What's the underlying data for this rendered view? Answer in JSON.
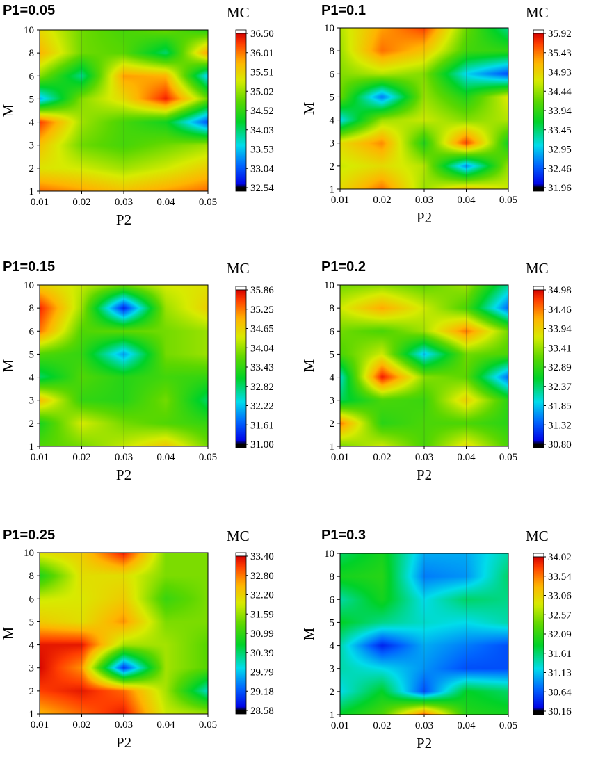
{
  "figure": {
    "x_axis_label": "P2",
    "y_axis_label": "M",
    "colorbar_title": "MC"
  },
  "chart_data": [
    {
      "type": "heatmap",
      "title": "P1=0.05",
      "xlabel": "P2",
      "ylabel": "M",
      "x": [
        0.01,
        0.02,
        0.03,
        0.04,
        0.05
      ],
      "y": [
        1,
        2,
        3,
        4,
        5,
        6,
        8,
        10
      ],
      "x_tick_labels": [
        "0.01",
        "0.02",
        "0.03",
        "0.04",
        "0.05"
      ],
      "y_tick_labels": [
        "1",
        "2",
        "3",
        "4",
        "5",
        "6",
        "8",
        "10"
      ],
      "colorbar_label": "MC",
      "colorbar_ticks": [
        "36.50",
        "36.01",
        "35.51",
        "35.02",
        "34.52",
        "34.03",
        "33.53",
        "33.04",
        "32.54"
      ],
      "zlim": [
        32.54,
        36.5
      ],
      "z": [
        [
          36.0,
          35.8,
          35.6,
          35.8,
          36.0
        ],
        [
          35.3,
          35.2,
          35.0,
          35.2,
          35.5
        ],
        [
          35.6,
          34.8,
          34.6,
          34.8,
          35.0
        ],
        [
          36.2,
          35.0,
          34.6,
          34.3,
          33.0
        ],
        [
          33.4,
          34.9,
          35.4,
          36.3,
          34.8
        ],
        [
          34.9,
          33.9,
          35.8,
          35.7,
          33.5
        ],
        [
          35.7,
          34.8,
          34.7,
          34.0,
          35.8
        ],
        [
          35.4,
          34.8,
          34.6,
          34.8,
          34.4
        ]
      ]
    },
    {
      "type": "heatmap",
      "title": "P1=0.1",
      "xlabel": "P2",
      "ylabel": "M",
      "x": [
        0.01,
        0.02,
        0.03,
        0.04,
        0.05
      ],
      "y": [
        1,
        2,
        3,
        4,
        5,
        6,
        8,
        10
      ],
      "x_tick_labels": [
        "0.01",
        "0.02",
        "0.03",
        "0.04",
        "0.05"
      ],
      "y_tick_labels": [
        "1",
        "2",
        "3",
        "4",
        "5",
        "6",
        "8",
        "10"
      ],
      "colorbar_label": "MC",
      "colorbar_ticks": [
        "35.92",
        "35.43",
        "34.93",
        "34.44",
        "33.94",
        "33.45",
        "32.95",
        "32.46",
        "31.96"
      ],
      "zlim": [
        31.96,
        35.92
      ],
      "z": [
        [
          34.8,
          35.4,
          34.4,
          35.0,
          34.6
        ],
        [
          34.6,
          34.8,
          34.5,
          32.7,
          34.4
        ],
        [
          34.8,
          35.3,
          33.8,
          35.6,
          33.7
        ],
        [
          33.0,
          34.4,
          34.6,
          34.3,
          34.5
        ],
        [
          34.2,
          32.6,
          34.4,
          33.8,
          34.7
        ],
        [
          34.3,
          34.5,
          34.3,
          33.0,
          32.4
        ],
        [
          34.4,
          35.4,
          35.0,
          34.0,
          33.9
        ],
        [
          34.5,
          35.2,
          35.6,
          34.2,
          33.3
        ]
      ]
    },
    {
      "type": "heatmap",
      "title": "P1=0.15",
      "xlabel": "P2",
      "ylabel": "M",
      "x": [
        0.01,
        0.02,
        0.03,
        0.04,
        0.05
      ],
      "y": [
        1,
        2,
        3,
        4,
        5,
        6,
        8,
        10
      ],
      "x_tick_labels": [
        "0.01",
        "0.02",
        "0.03",
        "0.04",
        "0.05"
      ],
      "y_tick_labels": [
        "1",
        "2",
        "3",
        "4",
        "5",
        "6",
        "8",
        "10"
      ],
      "colorbar_label": "MC",
      "colorbar_ticks": [
        "35.86",
        "35.25",
        "34.65",
        "34.04",
        "33.43",
        "32.82",
        "32.22",
        "31.61",
        "31.00"
      ],
      "zlim": [
        31.0,
        35.86
      ],
      "z": [
        [
          33.6,
          33.8,
          34.2,
          34.7,
          33.8
        ],
        [
          33.2,
          34.3,
          33.8,
          33.6,
          33.4
        ],
        [
          34.8,
          33.4,
          33.3,
          33.8,
          32.8
        ],
        [
          32.8,
          33.6,
          33.3,
          33.5,
          33.4
        ],
        [
          33.6,
          33.4,
          32.0,
          33.8,
          34.0
        ],
        [
          35.2,
          33.6,
          33.7,
          33.8,
          34.0
        ],
        [
          35.6,
          34.0,
          31.3,
          34.0,
          34.6
        ],
        [
          34.6,
          34.2,
          33.8,
          34.3,
          34.4
        ]
      ]
    },
    {
      "type": "heatmap",
      "title": "P1=0.2",
      "xlabel": "P2",
      "ylabel": "M",
      "x": [
        0.01,
        0.02,
        0.03,
        0.04,
        0.05
      ],
      "y": [
        1,
        2,
        3,
        4,
        5,
        6,
        8,
        10
      ],
      "x_tick_labels": [
        "0.01",
        "0.02",
        "0.03",
        "0.04",
        "0.05"
      ],
      "y_tick_labels": [
        "1",
        "2",
        "3",
        "4",
        "5",
        "6",
        "8",
        "10"
      ],
      "colorbar_label": "MC",
      "colorbar_ticks": [
        "34.98",
        "34.46",
        "33.94",
        "33.41",
        "32.89",
        "32.37",
        "31.85",
        "31.32",
        "30.80"
      ],
      "zlim": [
        30.8,
        34.98
      ],
      "z": [
        [
          33.2,
          33.6,
          33.0,
          33.8,
          33.0
        ],
        [
          34.4,
          32.8,
          33.0,
          33.0,
          32.8
        ],
        [
          32.4,
          33.0,
          32.9,
          33.9,
          32.8
        ],
        [
          32.0,
          34.8,
          33.3,
          33.1,
          31.4
        ],
        [
          33.0,
          33.6,
          31.8,
          33.2,
          33.0
        ],
        [
          33.2,
          33.0,
          33.4,
          34.4,
          33.2
        ],
        [
          33.6,
          34.2,
          33.6,
          33.0,
          31.4
        ],
        [
          33.2,
          33.3,
          33.1,
          33.4,
          32.2
        ]
      ]
    },
    {
      "type": "heatmap",
      "title": "P1=0.25",
      "xlabel": "P2",
      "ylabel": "M",
      "x": [
        0.01,
        0.02,
        0.03,
        0.04,
        0.05
      ],
      "y": [
        1,
        2,
        3,
        4,
        5,
        6,
        8,
        10
      ],
      "x_tick_labels": [
        "0.01",
        "0.02",
        "0.03",
        "0.04",
        "0.05"
      ],
      "y_tick_labels": [
        "1",
        "2",
        "3",
        "4",
        "5",
        "6",
        "8",
        "10"
      ],
      "colorbar_label": "MC",
      "colorbar_ticks": [
        "33.40",
        "32.80",
        "32.20",
        "31.59",
        "30.99",
        "30.39",
        "29.79",
        "29.18",
        "28.58"
      ],
      "zlim": [
        28.58,
        33.4
      ],
      "z": [
        [
          32.4,
          32.8,
          33.2,
          31.8,
          31.6
        ],
        [
          33.0,
          33.2,
          32.8,
          31.6,
          30.0
        ],
        [
          33.3,
          32.6,
          29.0,
          31.6,
          31.2
        ],
        [
          33.2,
          33.2,
          31.6,
          31.6,
          31.2
        ],
        [
          32.2,
          32.0,
          32.6,
          31.4,
          31.4
        ],
        [
          31.8,
          31.9,
          32.2,
          31.0,
          31.4
        ],
        [
          30.8,
          32.0,
          32.0,
          31.4,
          31.4
        ],
        [
          32.0,
          32.2,
          33.2,
          31.4,
          31.4
        ]
      ]
    },
    {
      "type": "heatmap",
      "title": "P1=0.3",
      "xlabel": "P2",
      "ylabel": "M",
      "x": [
        0.01,
        0.02,
        0.03,
        0.04,
        0.05
      ],
      "y": [
        1,
        2,
        3,
        4,
        5,
        6,
        8,
        10
      ],
      "x_tick_labels": [
        "0.01",
        "0.02",
        "0.03",
        "0.04",
        "0.05"
      ],
      "y_tick_labels": [
        "1",
        "2",
        "3",
        "4",
        "5",
        "6",
        "8",
        "10"
      ],
      "colorbar_label": "MC",
      "colorbar_ticks": [
        "34.02",
        "33.54",
        "33.06",
        "32.57",
        "32.09",
        "31.61",
        "31.13",
        "30.64",
        "30.16"
      ],
      "zlim": [
        30.16,
        34.02
      ],
      "z": [
        [
          31.8,
          32.2,
          33.6,
          32.0,
          31.9
        ],
        [
          31.2,
          31.8,
          30.6,
          31.8,
          31.6
        ],
        [
          31.4,
          31.2,
          30.9,
          30.6,
          30.6
        ],
        [
          31.4,
          30.4,
          31.0,
          30.8,
          30.6
        ],
        [
          31.8,
          31.5,
          31.3,
          31.2,
          31.4
        ],
        [
          31.4,
          31.9,
          31.2,
          31.6,
          31.5
        ],
        [
          31.9,
          32.0,
          30.8,
          30.9,
          31.6
        ],
        [
          31.6,
          31.9,
          31.0,
          31.0,
          31.4
        ]
      ]
    }
  ]
}
